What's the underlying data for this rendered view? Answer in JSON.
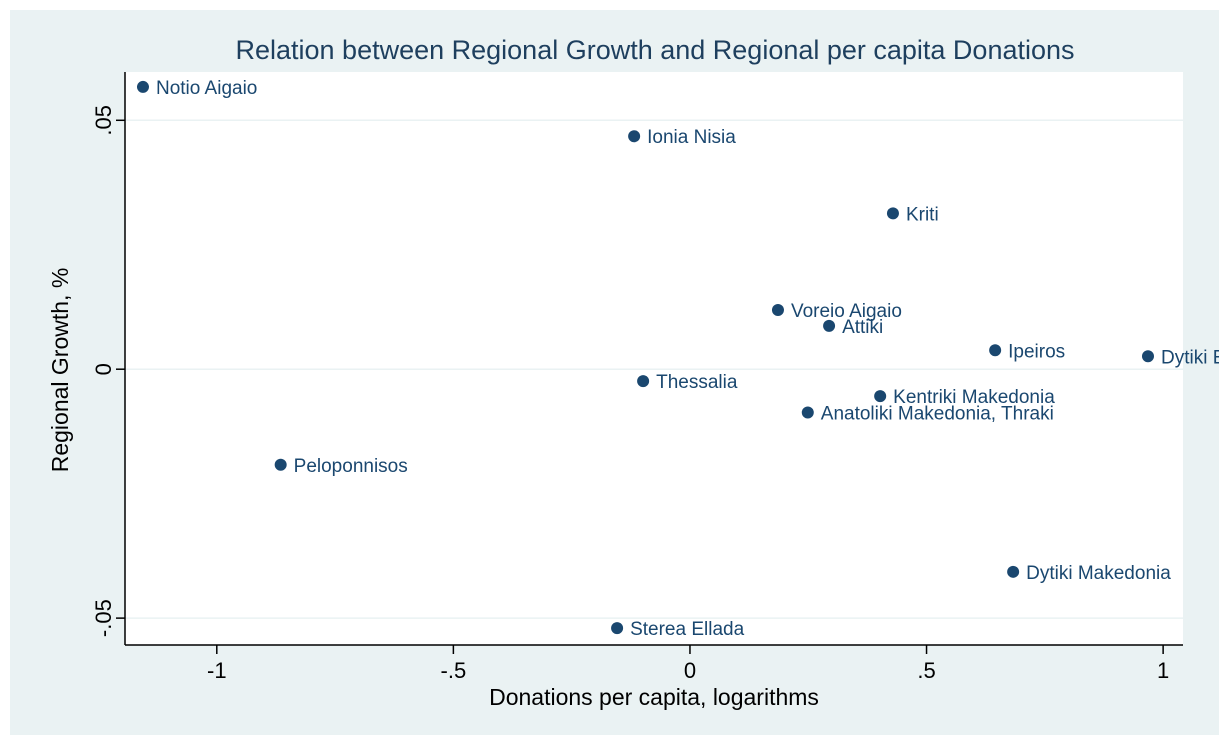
{
  "chart_data": {
    "type": "scatter",
    "title": "Relation between Regional Growth and Regional per capita Donations",
    "xlabel": "Donations per capita, logarithms",
    "ylabel": "Regional Growth, %",
    "color": "#1a476f",
    "grid": true,
    "xlim": [
      -1.194,
      1.042
    ],
    "ylim": [
      -0.0554,
      0.0597
    ],
    "xticks": [
      -1,
      {
        "value": -0.5,
        "label": "-.5"
      },
      0,
      {
        "value": 0.5,
        "label": ".5"
      },
      1
    ],
    "yticks": [
      {
        "value": -0.05,
        "label": "-.05"
      },
      0,
      {
        "value": 0.05,
        "label": ".05"
      }
    ],
    "point_labels": [
      "Notio Aigaio",
      "Ionia Nisia",
      "Kriti",
      "Voreio Aigaio",
      "Attiki",
      "Ipeiros",
      "Dytiki Ellada",
      "Thessalia",
      "Kentriki Makedonia",
      "Anatoliki Makedonia, Thraki",
      "Peloponnisos",
      "Dytiki Makedonia",
      "Sterea Ellada"
    ],
    "x": [
      -1.156,
      -0.118,
      0.429,
      0.186,
      0.294,
      0.645,
      0.968,
      -0.099,
      0.402,
      0.249,
      -0.865,
      0.683,
      -0.154
    ],
    "values": [
      0.0567,
      0.0468,
      0.0313,
      0.0119,
      0.0087,
      0.0038,
      0.0026,
      -0.0024,
      -0.0054,
      -0.0087,
      -0.0192,
      -0.0407,
      -0.052
    ]
  }
}
